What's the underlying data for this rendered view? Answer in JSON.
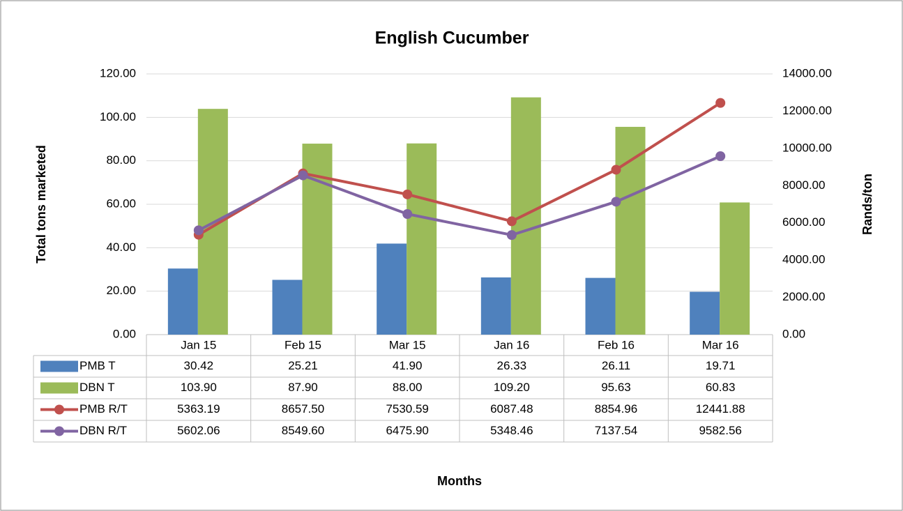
{
  "chart_data": {
    "type": "bar_line_table",
    "title": "English Cucumber",
    "xlabel": "Months",
    "ylabel": "Total tons marketed",
    "y2label": "Rands/ton",
    "categories": [
      "Jan 15",
      "Feb 15",
      "Mar 15",
      "Jan 16",
      "Feb 16",
      "Mar 16"
    ],
    "series": [
      {
        "name": "PMB T",
        "type": "bar",
        "color": "#4f81bd",
        "values": [
          30.42,
          25.21,
          41.9,
          26.33,
          26.11,
          19.71
        ],
        "value_labels": [
          "30.42",
          "25.21",
          "41.90",
          "26.33",
          "26.11",
          "19.71"
        ]
      },
      {
        "name": "DBN T",
        "type": "bar",
        "color": "#9bbb59",
        "values": [
          103.9,
          87.9,
          88.0,
          109.2,
          95.63,
          60.83
        ],
        "value_labels": [
          "103.90",
          "87.90",
          "88.00",
          "109.20",
          "95.63",
          "60.83"
        ]
      },
      {
        "name": "PMB R/T",
        "type": "line",
        "axis": "y2",
        "color": "#c0504d",
        "values": [
          5363.19,
          8657.5,
          7530.59,
          6087.48,
          8854.96,
          12441.88
        ],
        "value_labels": [
          "5363.19",
          "8657.50",
          "7530.59",
          "6087.48",
          "8854.96",
          "12441.88"
        ]
      },
      {
        "name": "DBN R/T",
        "type": "line",
        "axis": "y2",
        "color": "#8064a2",
        "values": [
          5602.06,
          8549.6,
          6475.9,
          5348.46,
          7137.54,
          9582.56
        ],
        "value_labels": [
          "5602.06",
          "8549.60",
          "6475.90",
          "5348.46",
          "7137.54",
          "9582.56"
        ]
      }
    ],
    "ylim": [
      0,
      120
    ],
    "yticks": [
      {
        "value": 0,
        "label": "0.00"
      },
      {
        "value": 20,
        "label": "20.00"
      },
      {
        "value": 40,
        "label": "40.00"
      },
      {
        "value": 60,
        "label": "60.00"
      },
      {
        "value": 80,
        "label": "80.00"
      },
      {
        "value": 100,
        "label": "100.00"
      },
      {
        "value": 120,
        "label": "120.00"
      }
    ],
    "y2lim": [
      0,
      14000
    ],
    "y2ticks": [
      {
        "value": 0,
        "label": "0.00"
      },
      {
        "value": 2000,
        "label": "2000.00"
      },
      {
        "value": 4000,
        "label": "4000.00"
      },
      {
        "value": 6000,
        "label": "6000.00"
      },
      {
        "value": 8000,
        "label": "8000.00"
      },
      {
        "value": 10000,
        "label": "10000.00"
      },
      {
        "value": 12000,
        "label": "12000.00"
      },
      {
        "value": 14000,
        "label": "14000.00"
      }
    ],
    "grid": true
  }
}
